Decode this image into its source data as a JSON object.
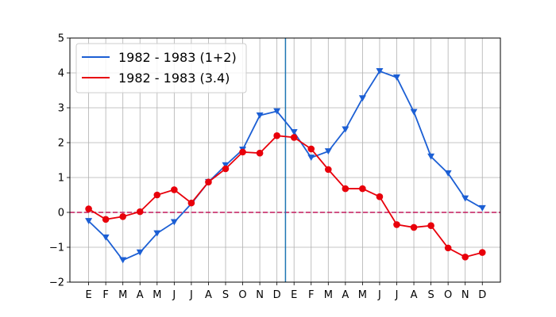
{
  "chart_data": {
    "type": "line",
    "x_tick_labels": [
      "E",
      "F",
      "M",
      "A",
      "M",
      "J",
      "J",
      "A",
      "S",
      "O",
      "N",
      "D",
      "E",
      "F",
      "M",
      "A",
      "M",
      "J",
      "J",
      "A",
      "S",
      "O",
      "N",
      "D"
    ],
    "ylim": [
      -2,
      5
    ],
    "y_ticks": [
      -2,
      -1,
      0,
      1,
      2,
      3,
      4,
      5
    ],
    "y_tick_labels": [
      "−2",
      "−1",
      "0",
      "1",
      "2",
      "3",
      "4",
      "5"
    ],
    "grid": true,
    "legend_position": "top-left",
    "zero_line": {
      "y": 0,
      "color": "#c2185b",
      "style": "dashed"
    },
    "vline": {
      "x_index": 11.5,
      "color": "#1f77b4"
    },
    "series": [
      {
        "name": "1982 - 1983 (1+2)",
        "color": "#1c5fd4",
        "marker": "triangle-down",
        "values": [
          -0.25,
          -0.72,
          -1.37,
          -1.15,
          -0.6,
          -0.28,
          0.25,
          0.87,
          1.35,
          1.8,
          2.78,
          2.9,
          2.3,
          1.57,
          1.75,
          2.38,
          3.27,
          4.05,
          3.87,
          2.88,
          1.6,
          1.12,
          0.4,
          0.12
        ]
      },
      {
        "name": "1982 - 1983 (3.4)",
        "color": "#e8000b",
        "marker": "circle",
        "values": [
          0.1,
          -0.2,
          -0.12,
          0.02,
          0.5,
          0.65,
          0.27,
          0.87,
          1.25,
          1.73,
          1.7,
          2.2,
          2.15,
          1.82,
          1.23,
          0.68,
          0.68,
          0.45,
          -0.35,
          -0.43,
          -0.38,
          -1.02,
          -1.28,
          -1.15
        ]
      }
    ]
  }
}
